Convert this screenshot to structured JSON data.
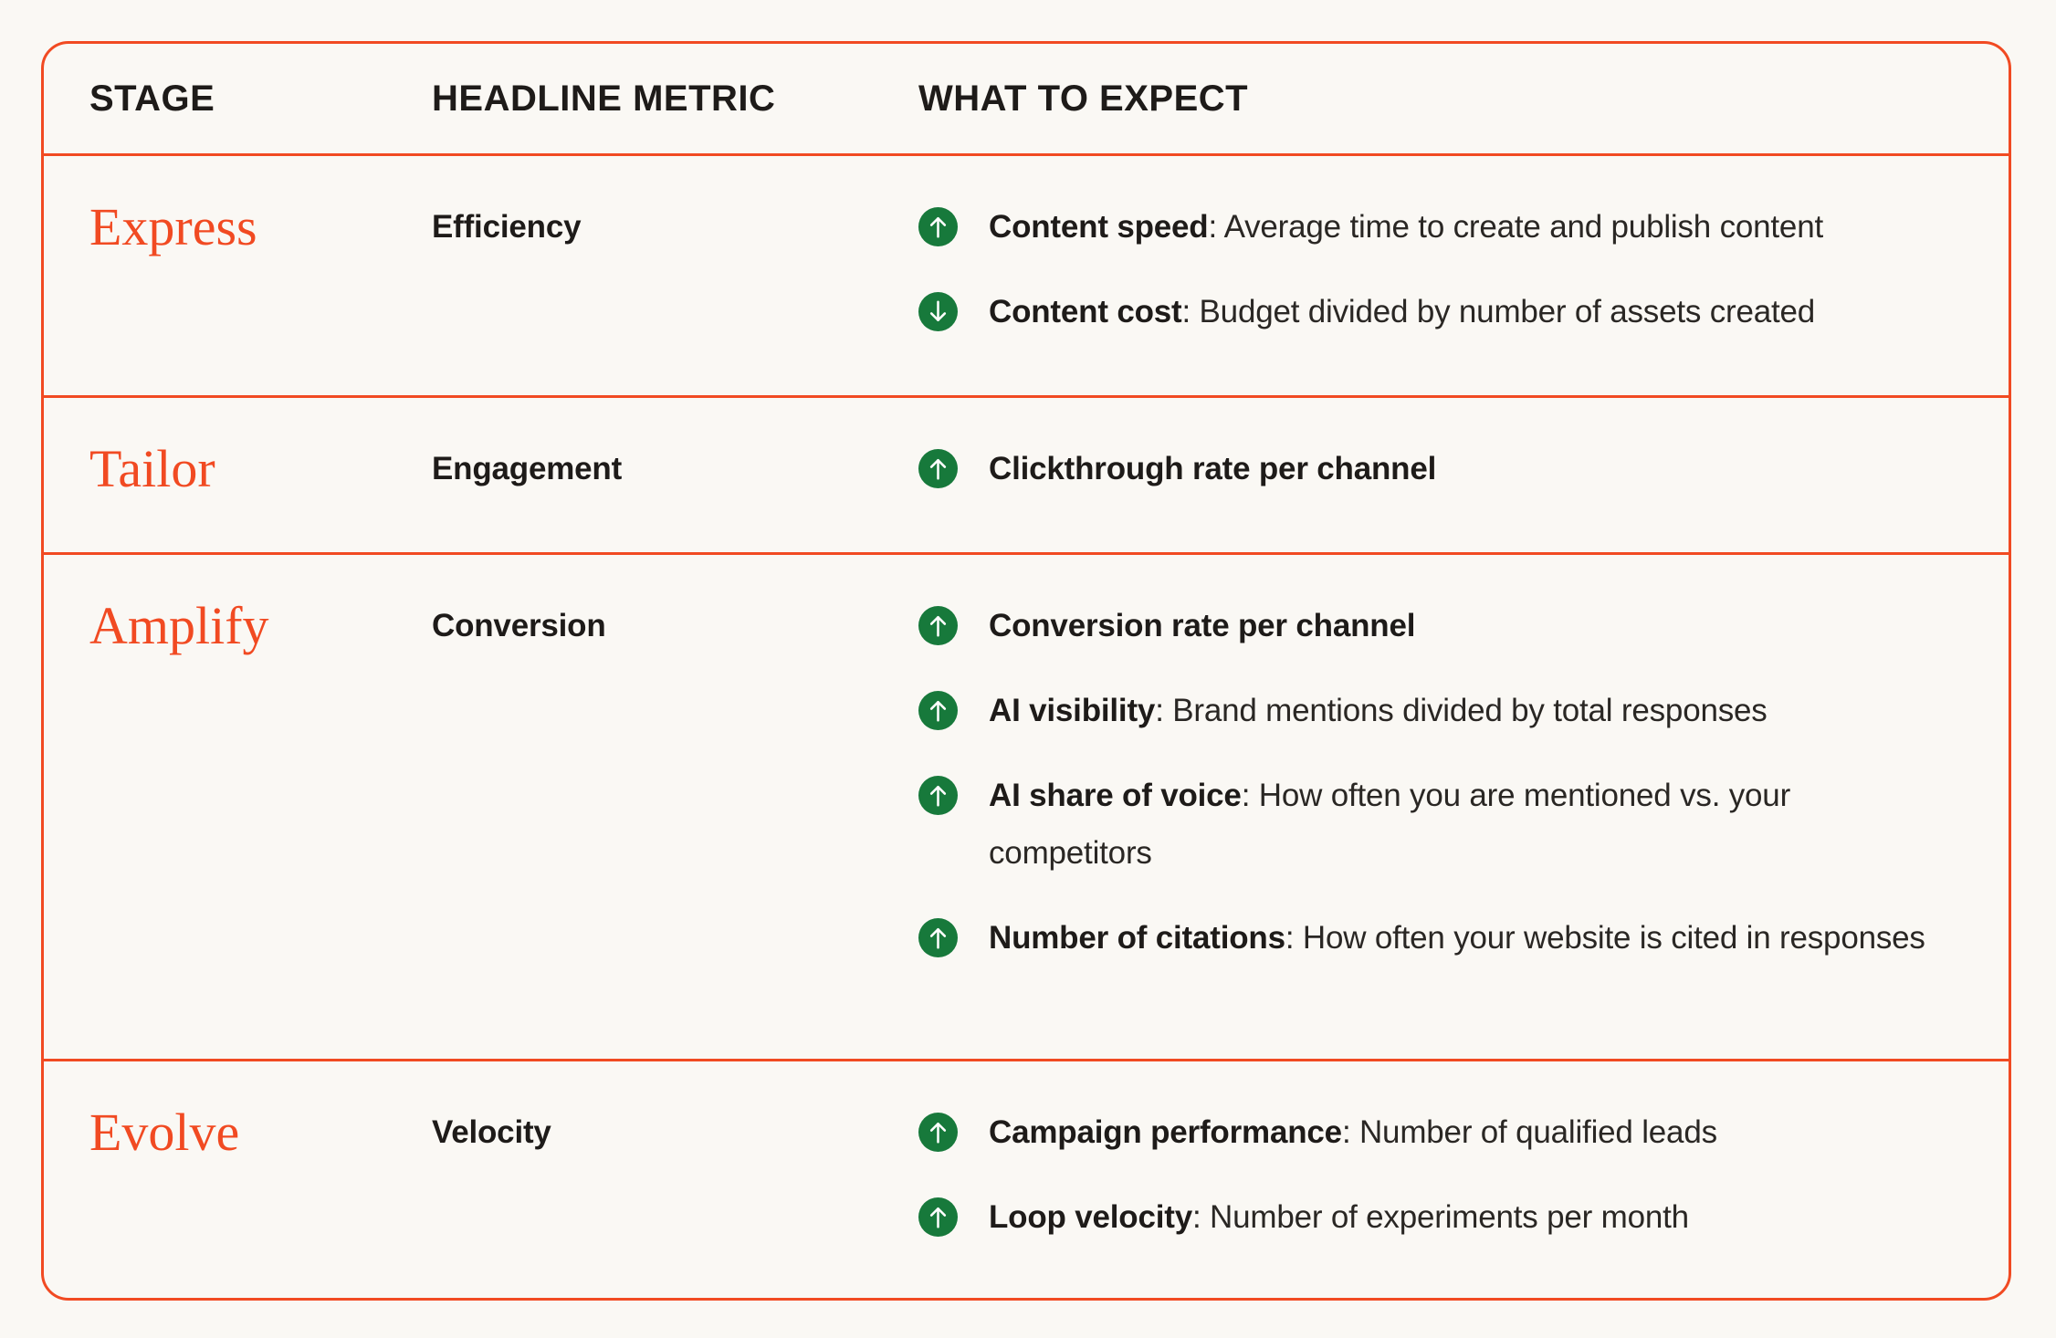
{
  "table": {
    "columns": [
      {
        "label": "STAGE"
      },
      {
        "label": "HEADLINE METRIC"
      },
      {
        "label": "WHAT TO EXPECT"
      }
    ],
    "rows": [
      {
        "stage": "Express",
        "metric": "Efficiency",
        "expectations": [
          {
            "direction": "up",
            "label": "Content speed",
            "description": ": Average time to create and publish content"
          },
          {
            "direction": "down",
            "label": "Content cost",
            "description": ": Budget divided by number of assets created"
          }
        ]
      },
      {
        "stage": "Tailor",
        "metric": "Engagement",
        "expectations": [
          {
            "direction": "up",
            "label": "Clickthrough rate per channel",
            "description": ""
          }
        ]
      },
      {
        "stage": "Amplify",
        "metric": "Conversion",
        "expectations": [
          {
            "direction": "up",
            "label": "Conversion rate per channel",
            "description": ""
          },
          {
            "direction": "up",
            "label": "AI visibility",
            "description": ": Brand mentions divided by total responses"
          },
          {
            "direction": "up",
            "label": "AI share of voice",
            "description": ": How often you are mentioned vs. your competitors"
          },
          {
            "direction": "up",
            "label": "Number of citations",
            "description": ": How often your website is cited in responses"
          }
        ]
      },
      {
        "stage": "Evolve",
        "metric": "Velocity",
        "expectations": [
          {
            "direction": "up",
            "label": "Campaign performance",
            "description": ": Number of qualified leads"
          },
          {
            "direction": "up",
            "label": "Loop velocity",
            "description": ": Number of experiments per month"
          }
        ]
      }
    ]
  },
  "colors": {
    "accent_orange": "#F14A22",
    "icon_green": "#17793B",
    "background": "#FAF8F4",
    "text": "#221F1C"
  },
  "icons": {
    "up": "arrow-up-icon",
    "down": "arrow-down-icon"
  }
}
